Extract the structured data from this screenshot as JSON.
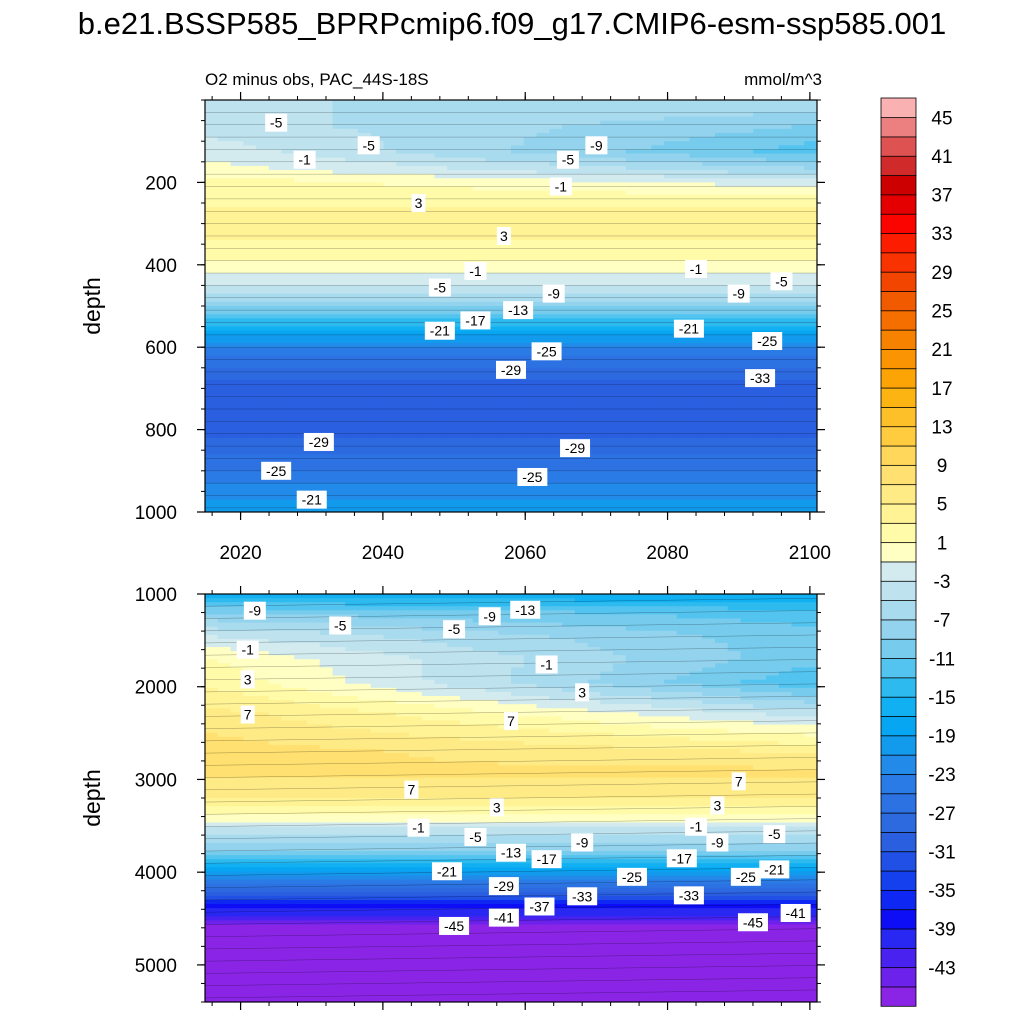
{
  "chart_data": {
    "type": "contour",
    "title": "b.e21.BSSP585_BPRPcmip6.f09_g17.CMIP6-esm-ssp585.001",
    "subtitle_left": "O2 minus obs, PAC_44S-18S",
    "subtitle_right": "mmol/m^3",
    "units": "mmol/m^3",
    "xlim": [
      2015,
      2101
    ],
    "x_ticks": [
      2020,
      2040,
      2060,
      2080,
      2100
    ],
    "x_tick_labels": [
      "2020",
      "2040",
      "2060",
      "2080",
      "2100"
    ],
    "panels": [
      {
        "name": "upper",
        "ylabel": "depth",
        "ylim": [
          0,
          1000
        ],
        "y_ticks": [
          200,
          400,
          600,
          800,
          1000
        ],
        "y_tick_labels": [
          "200",
          "400",
          "600",
          "800",
          "1000"
        ],
        "show_x_tick_labels": true,
        "depth_profile": [
          {
            "depth": 0,
            "value": -5
          },
          {
            "depth": 60,
            "value": -4
          },
          {
            "depth": 120,
            "value": -2
          },
          {
            "depth": 170,
            "value": 0
          },
          {
            "depth": 200,
            "value": 2
          },
          {
            "depth": 260,
            "value": 3
          },
          {
            "depth": 340,
            "value": 3
          },
          {
            "depth": 390,
            "value": 1
          },
          {
            "depth": 420,
            "value": -1
          },
          {
            "depth": 470,
            "value": -5
          },
          {
            "depth": 520,
            "value": -11
          },
          {
            "depth": 570,
            "value": -19
          },
          {
            "depth": 620,
            "value": -25
          },
          {
            "depth": 680,
            "value": -29
          },
          {
            "depth": 760,
            "value": -31
          },
          {
            "depth": 820,
            "value": -29
          },
          {
            "depth": 900,
            "value": -25
          },
          {
            "depth": 1000,
            "value": -19
          }
        ],
        "time_shift": {
          "per_year": -0.04,
          "start_depth": 0,
          "end_depth": 250
        },
        "contour_labels": [
          {
            "text": "-5",
            "year": 2025,
            "depth": 55
          },
          {
            "text": "-5",
            "year": 2038,
            "depth": 110
          },
          {
            "text": "-1",
            "year": 2029,
            "depth": 145
          },
          {
            "text": "-5",
            "year": 2066,
            "depth": 145
          },
          {
            "text": "-9",
            "year": 2070,
            "depth": 110
          },
          {
            "text": "-1",
            "year": 2065,
            "depth": 210
          },
          {
            "text": "3",
            "year": 2045,
            "depth": 250
          },
          {
            "text": "3",
            "year": 2057,
            "depth": 330
          },
          {
            "text": "-1",
            "year": 2053,
            "depth": 415
          },
          {
            "text": "-1",
            "year": 2084,
            "depth": 410
          },
          {
            "text": "-5",
            "year": 2048,
            "depth": 455
          },
          {
            "text": "-9",
            "year": 2064,
            "depth": 470
          },
          {
            "text": "-9",
            "year": 2090,
            "depth": 470
          },
          {
            "text": "-5",
            "year": 2096,
            "depth": 440
          },
          {
            "text": "-13",
            "year": 2059,
            "depth": 510
          },
          {
            "text": "-17",
            "year": 2053,
            "depth": 535
          },
          {
            "text": "-21",
            "year": 2048,
            "depth": 560
          },
          {
            "text": "-21",
            "year": 2083,
            "depth": 555
          },
          {
            "text": "-25",
            "year": 2063,
            "depth": 610
          },
          {
            "text": "-25",
            "year": 2094,
            "depth": 585
          },
          {
            "text": "-29",
            "year": 2058,
            "depth": 655
          },
          {
            "text": "-33",
            "year": 2093,
            "depth": 675
          },
          {
            "text": "-29",
            "year": 2031,
            "depth": 830
          },
          {
            "text": "-29",
            "year": 2067,
            "depth": 845
          },
          {
            "text": "-25",
            "year": 2025,
            "depth": 900
          },
          {
            "text": "-25",
            "year": 2061,
            "depth": 915
          },
          {
            "text": "-21",
            "year": 2030,
            "depth": 970
          }
        ]
      },
      {
        "name": "lower",
        "ylabel": "depth",
        "ylim": [
          1000,
          5400
        ],
        "y_ticks": [
          1000,
          2000,
          3000,
          4000,
          5000
        ],
        "y_tick_labels": [
          "1000",
          "2000",
          "3000",
          "4000",
          "5000"
        ],
        "show_x_tick_labels": false,
        "depth_profile": [
          {
            "depth": 1000,
            "value": -17
          },
          {
            "depth": 1200,
            "value": -9
          },
          {
            "depth": 1450,
            "value": -3
          },
          {
            "depth": 1700,
            "value": 1
          },
          {
            "depth": 2000,
            "value": 3
          },
          {
            "depth": 2300,
            "value": 6
          },
          {
            "depth": 2700,
            "value": 8
          },
          {
            "depth": 3000,
            "value": 7
          },
          {
            "depth": 3200,
            "value": 5
          },
          {
            "depth": 3350,
            "value": 2
          },
          {
            "depth": 3480,
            "value": -2
          },
          {
            "depth": 3700,
            "value": -7
          },
          {
            "depth": 3950,
            "value": -17
          },
          {
            "depth": 4200,
            "value": -29
          },
          {
            "depth": 4400,
            "value": -39
          },
          {
            "depth": 4600,
            "value": -46
          },
          {
            "depth": 5400,
            "value": -47
          }
        ],
        "time_shift": {
          "per_year": -0.06,
          "start_depth": 1000,
          "end_depth": 2900
        },
        "contour_labels": [
          {
            "text": "-9",
            "year": 2022,
            "depth": 1180
          },
          {
            "text": "-5",
            "year": 2034,
            "depth": 1340
          },
          {
            "text": "-5",
            "year": 2050,
            "depth": 1380
          },
          {
            "text": "-9",
            "year": 2055,
            "depth": 1240
          },
          {
            "text": "-13",
            "year": 2060,
            "depth": 1170
          },
          {
            "text": "-1",
            "year": 2021,
            "depth": 1600
          },
          {
            "text": "-1",
            "year": 2063,
            "depth": 1760
          },
          {
            "text": "3",
            "year": 2021,
            "depth": 1920
          },
          {
            "text": "3",
            "year": 2068,
            "depth": 2060
          },
          {
            "text": "7",
            "year": 2021,
            "depth": 2300
          },
          {
            "text": "7",
            "year": 2058,
            "depth": 2370
          },
          {
            "text": "7",
            "year": 2044,
            "depth": 3110
          },
          {
            "text": "7",
            "year": 2090,
            "depth": 3020
          },
          {
            "text": "3",
            "year": 2056,
            "depth": 3300
          },
          {
            "text": "3",
            "year": 2087,
            "depth": 3280
          },
          {
            "text": "-1",
            "year": 2045,
            "depth": 3520
          },
          {
            "text": "-1",
            "year": 2084,
            "depth": 3510
          },
          {
            "text": "-5",
            "year": 2053,
            "depth": 3620
          },
          {
            "text": "-5",
            "year": 2095,
            "depth": 3590
          },
          {
            "text": "-9",
            "year": 2068,
            "depth": 3680
          },
          {
            "text": "-9",
            "year": 2087,
            "depth": 3680
          },
          {
            "text": "-13",
            "year": 2058,
            "depth": 3790
          },
          {
            "text": "-17",
            "year": 2063,
            "depth": 3860
          },
          {
            "text": "-17",
            "year": 2082,
            "depth": 3850
          },
          {
            "text": "-21",
            "year": 2049,
            "depth": 3990
          },
          {
            "text": "-21",
            "year": 2095,
            "depth": 3970
          },
          {
            "text": "-25",
            "year": 2075,
            "depth": 4050
          },
          {
            "text": "-25",
            "year": 2091,
            "depth": 4050
          },
          {
            "text": "-29",
            "year": 2057,
            "depth": 4150
          },
          {
            "text": "-33",
            "year": 2068,
            "depth": 4260
          },
          {
            "text": "-33",
            "year": 2083,
            "depth": 4250
          },
          {
            "text": "-37",
            "year": 2062,
            "depth": 4370
          },
          {
            "text": "-41",
            "year": 2057,
            "depth": 4490
          },
          {
            "text": "-41",
            "year": 2098,
            "depth": 4440
          },
          {
            "text": "-45",
            "year": 2050,
            "depth": 4580
          },
          {
            "text": "-45",
            "year": 2092,
            "depth": 4540
          }
        ]
      }
    ],
    "colorbar": {
      "min": -47,
      "max": 47,
      "step": 2,
      "labels": [
        "45",
        "41",
        "37",
        "33",
        "29",
        "25",
        "21",
        "17",
        "13",
        "9",
        "5",
        "1",
        "-3",
        "-7",
        "-11",
        "-15",
        "-19",
        "-23",
        "-27",
        "-31",
        "-35",
        "-39",
        "-43"
      ],
      "colors": [
        "#8a25e6",
        "#6c22eb",
        "#4a22f0",
        "#2828f2",
        "#0d0df6",
        "#0e27f3",
        "#1540ee",
        "#2050e6",
        "#2a5fe0",
        "#2d6ae0",
        "#2c72e2",
        "#2a7be6",
        "#228bea",
        "#129aed",
        "#06a6f2",
        "#11b0f2",
        "#2cbaef",
        "#53c4ef",
        "#77cced",
        "#93d3ee",
        "#a9dbef",
        "#bee3ef",
        "#d3ebef",
        "#ffffc4",
        "#fffba8",
        "#fff396",
        "#ffeb86",
        "#ffe070",
        "#ffd75a",
        "#ffcc40",
        "#fdc028",
        "#fcb412",
        "#fca306",
        "#fa9402",
        "#f78200",
        "#f56e00",
        "#f25a00",
        "#f24600",
        "#f83200",
        "#fc1c00",
        "#fb0400",
        "#e40000",
        "#cc0000",
        "#d12a2a",
        "#de5252",
        "#ec8080",
        "#f9b1b1"
      ]
    }
  }
}
